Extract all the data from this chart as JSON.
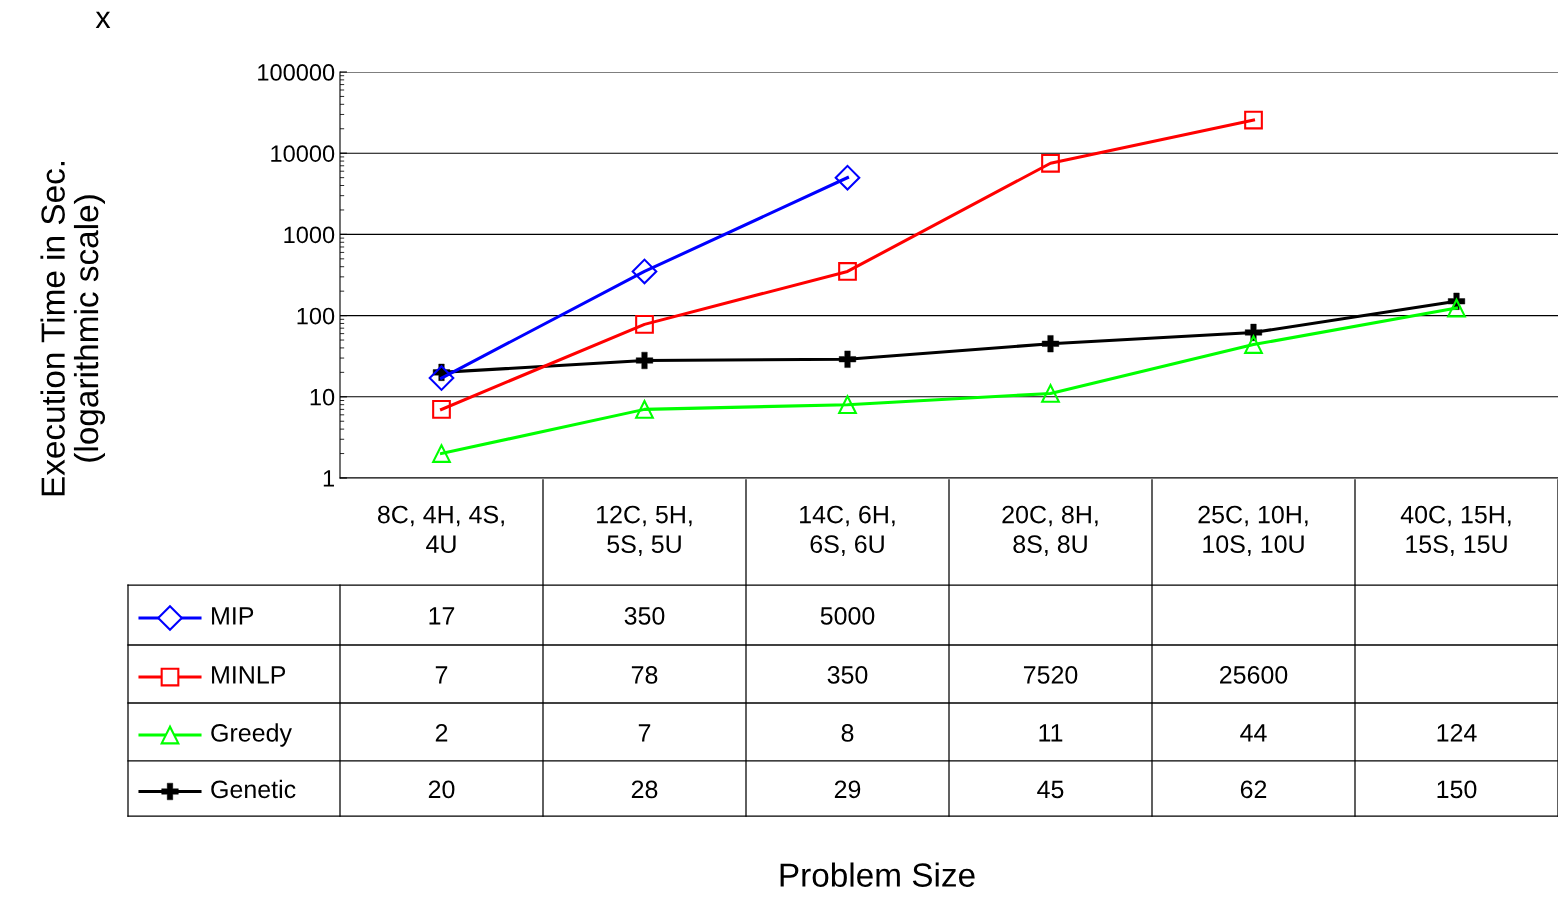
{
  "chart_data": {
    "type": "line",
    "ylabel": "Execution Time in Sec.\n(logarithmic scale)",
    "categories": [
      "8C, 4H, 4S,\n4U",
      "12C, 5H,\n5S, 5U",
      "14C, 6H,\n6S, 6U",
      "20C, 8H,\n8S, 8U",
      "25C, 10H,\n10S, 10U",
      "40C, 15H,\n15S, 15U"
    ],
    "series": [
      {
        "name": "MIP",
        "color": "#0000ff",
        "marker": "diamond",
        "values": [
          17,
          350,
          5000,
          null,
          null,
          null
        ]
      },
      {
        "name": "MINLP",
        "color": "#ff0000",
        "marker": "square",
        "values": [
          7,
          78,
          350,
          7520,
          25600,
          null
        ]
      },
      {
        "name": "Greedy",
        "color": "#00ff00",
        "marker": "triangle",
        "values": [
          2,
          7,
          8,
          11,
          44,
          124
        ]
      },
      {
        "name": "Genetic",
        "color": "#000000",
        "marker": "cross",
        "values": [
          20,
          28,
          29,
          45,
          62,
          150
        ]
      }
    ],
    "log": "y",
    "ylim": [
      1,
      100000
    ],
    "yticks": [
      1,
      10,
      100,
      1000,
      10000,
      100000
    ],
    "grid": "y",
    "legend": "bottom left",
    "data_labels": true,
    "annotations": [
      "x",
      "Problem Size"
    ]
  }
}
